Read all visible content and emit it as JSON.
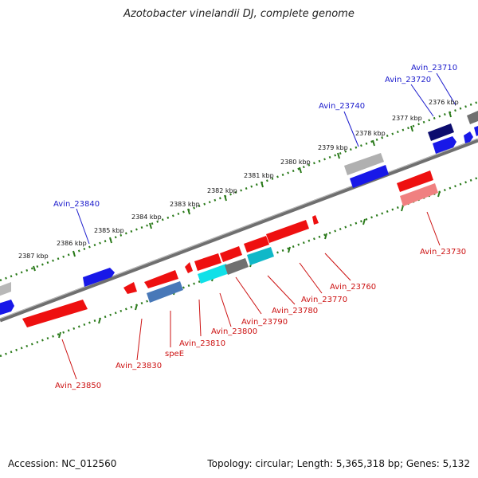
{
  "title": "Azotobacter vinelandii DJ, complete genome",
  "footer": {
    "accession": "Accession: NC_012560",
    "summary": "Topology: circular; Length: 5,365,318 bp; Genes: 5,132"
  },
  "colors": {
    "forward_label": "#1a1acc",
    "reverse_label": "#cc1111",
    "backbone": "#777777",
    "tick_dots": "#2a7a1a"
  },
  "tick_labels": [
    "2376 kbp",
    "2377 kbp",
    "2378 kbp",
    "2379 kbp",
    "2380 kbp",
    "2381 kbp",
    "2382 kbp",
    "2383 kbp",
    "2384 kbp",
    "2385 kbp",
    "2386 kbp",
    "2387 kbp"
  ],
  "forward_labels": [
    "Avin_23710",
    "Avin_23720",
    "Avin_23740",
    "Avin_23840"
  ],
  "reverse_labels": [
    "Avin_23730",
    "Avin_23760",
    "Avin_23770",
    "Avin_23780",
    "Avin_23790",
    "Avin_23800",
    "Avin_23810",
    "speE",
    "Avin_23830",
    "Avin_23850"
  ]
}
